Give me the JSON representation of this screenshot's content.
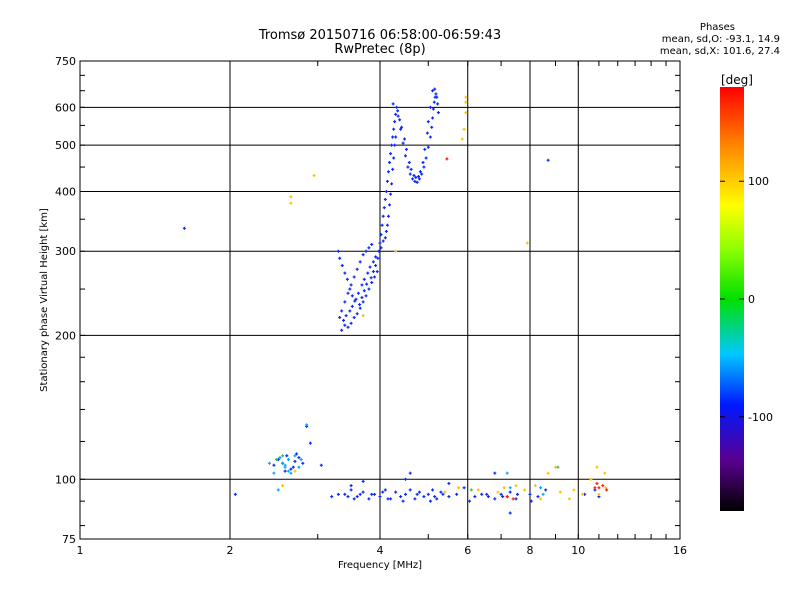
{
  "chart_data": {
    "type": "scatter",
    "title": "Tromsø 20150716 06:58:00-06:59:43",
    "subtitle": "RwPretec (8p)",
    "xlabel": "Frequency [MHz]",
    "ylabel": "Stationary phase Virtual Height [km]",
    "x_scale": "log",
    "y_scale": "log",
    "xlim": [
      1,
      16
    ],
    "ylim": [
      75,
      750
    ],
    "x_ticks": [
      "1",
      "2",
      "4",
      "6",
      "8",
      "10",
      "16"
    ],
    "x_tick_values": [
      1,
      2,
      4,
      6,
      8,
      10,
      16
    ],
    "y_ticks": [
      "75",
      "100",
      "200",
      "300",
      "400",
      "500",
      "600",
      "750"
    ],
    "y_tick_values": [
      75,
      100,
      200,
      300,
      400,
      500,
      600,
      750
    ],
    "grid": true,
    "phase_info": {
      "heading": "Phases",
      "line1": "mean, sd,O: -93.1, 14.9",
      "line2": "mean, sd,X: 101.6, 27.4"
    },
    "colorbar": {
      "label": "[deg]",
      "ticks": [
        "100",
        "0",
        "-100"
      ],
      "tick_values": [
        100,
        0,
        -100
      ],
      "range": [
        -180,
        180
      ]
    },
    "series": [
      {
        "points": [
          [
            3.35,
            205
          ],
          [
            3.4,
            210
          ],
          [
            3.38,
            215
          ],
          [
            3.45,
            208
          ],
          [
            3.5,
            212
          ],
          [
            3.42,
            220
          ],
          [
            3.55,
            218
          ],
          [
            3.48,
            225
          ],
          [
            3.6,
            222
          ],
          [
            3.52,
            230
          ],
          [
            3.65,
            228
          ],
          [
            3.58,
            238
          ],
          [
            3.7,
            235
          ],
          [
            3.62,
            245
          ],
          [
            3.75,
            242
          ],
          [
            3.68,
            255
          ],
          [
            3.8,
            250
          ],
          [
            3.72,
            262
          ],
          [
            3.85,
            258
          ],
          [
            3.78,
            270
          ],
          [
            3.9,
            265
          ],
          [
            3.82,
            278
          ],
          [
            3.95,
            272
          ],
          [
            3.88,
            285
          ],
          [
            3.92,
            292
          ],
          [
            3.75,
            300
          ],
          [
            3.8,
            305
          ],
          [
            3.85,
            310
          ],
          [
            3.7,
            295
          ],
          [
            3.65,
            285
          ],
          [
            3.6,
            275
          ],
          [
            3.55,
            265
          ],
          [
            3.5,
            255
          ],
          [
            3.45,
            245
          ],
          [
            3.4,
            235
          ],
          [
            3.35,
            225
          ],
          [
            3.32,
            218
          ],
          [
            3.3,
            300
          ],
          [
            3.32,
            290
          ],
          [
            3.36,
            280
          ],
          [
            3.4,
            270
          ],
          [
            3.44,
            262
          ],
          [
            3.48,
            250
          ],
          [
            3.52,
            242
          ],
          [
            3.56,
            236
          ],
          [
            3.64,
            232
          ],
          [
            3.68,
            240
          ],
          [
            3.72,
            248
          ],
          [
            3.76,
            256
          ],
          [
            3.84,
            264
          ],
          [
            3.88,
            272
          ],
          [
            3.92,
            280
          ],
          [
            3.96,
            290
          ],
          [
            3.98,
            300
          ],
          [
            4.0,
            312
          ],
          [
            4.02,
            325
          ],
          [
            4.04,
            340
          ],
          [
            4.06,
            355
          ],
          [
            4.08,
            370
          ],
          [
            4.1,
            385
          ],
          [
            4.12,
            400
          ],
          [
            4.14,
            420
          ],
          [
            4.16,
            440
          ],
          [
            4.18,
            460
          ],
          [
            4.2,
            480
          ],
          [
            4.22,
            500
          ],
          [
            4.24,
            520
          ],
          [
            4.26,
            540
          ],
          [
            4.28,
            560
          ],
          [
            4.3,
            580
          ],
          [
            4.32,
            600
          ],
          [
            4.25,
            610
          ],
          [
            4.35,
            575
          ],
          [
            4.4,
            540
          ],
          [
            4.45,
            505
          ],
          [
            4.5,
            475
          ],
          [
            4.55,
            450
          ],
          [
            4.6,
            435
          ],
          [
            4.65,
            425
          ],
          [
            4.7,
            420
          ],
          [
            4.75,
            418
          ],
          [
            4.8,
            425
          ],
          [
            4.85,
            435
          ],
          [
            4.9,
            450
          ],
          [
            4.95,
            470
          ],
          [
            5.0,
            495
          ],
          [
            5.05,
            520
          ],
          [
            5.08,
            545
          ],
          [
            5.1,
            570
          ],
          [
            5.12,
            595
          ],
          [
            5.14,
            615
          ],
          [
            5.16,
            630
          ],
          [
            5.18,
            640
          ],
          [
            5.2,
            630
          ],
          [
            5.22,
            610
          ],
          [
            5.24,
            585
          ],
          [
            5.1,
            650
          ],
          [
            5.15,
            655
          ],
          [
            5.05,
            600
          ],
          [
            5.0,
            560
          ],
          [
            4.98,
            530
          ],
          [
            4.92,
            490
          ],
          [
            4.88,
            460
          ],
          [
            4.82,
            440
          ],
          [
            4.78,
            430
          ],
          [
            4.72,
            428
          ],
          [
            4.68,
            432
          ],
          [
            4.62,
            445
          ],
          [
            4.58,
            460
          ],
          [
            4.52,
            490
          ],
          [
            4.48,
            515
          ],
          [
            4.42,
            545
          ],
          [
            4.38,
            565
          ],
          [
            4.34,
            590
          ],
          [
            4.3,
            520
          ],
          [
            4.28,
            500
          ],
          [
            4.26,
            470
          ],
          [
            4.24,
            445
          ],
          [
            4.22,
            415
          ],
          [
            4.2,
            395
          ],
          [
            4.18,
            375
          ],
          [
            4.16,
            355
          ],
          [
            4.14,
            340
          ],
          [
            4.12,
            330
          ],
          [
            4.1,
            320
          ],
          [
            4.06,
            315
          ],
          [
            4.02,
            305
          ],
          [
            1.62,
            335
          ],
          [
            8.7,
            465
          ],
          [
            2.45,
            107
          ],
          [
            2.5,
            110
          ],
          [
            2.55,
            108
          ],
          [
            2.6,
            112
          ],
          [
            2.65,
            105
          ],
          [
            2.7,
            109
          ],
          [
            2.75,
            111
          ],
          [
            2.58,
            104
          ],
          [
            2.68,
            106
          ],
          [
            2.8,
            108
          ],
          [
            2.72,
            113
          ],
          [
            2.9,
            119
          ],
          [
            2.85,
            129
          ],
          [
            3.05,
            107
          ],
          [
            2.05,
            93
          ],
          [
            3.2,
            92
          ],
          [
            3.4,
            93
          ],
          [
            3.5,
            95
          ],
          [
            3.6,
            92
          ],
          [
            3.7,
            94
          ],
          [
            3.8,
            91
          ],
          [
            3.9,
            93
          ],
          [
            4.0,
            92
          ],
          [
            4.1,
            95
          ],
          [
            4.2,
            91
          ],
          [
            4.3,
            94
          ],
          [
            4.4,
            92
          ],
          [
            4.5,
            93
          ],
          [
            4.6,
            95
          ],
          [
            4.7,
            91
          ],
          [
            4.8,
            94
          ],
          [
            4.9,
            92
          ],
          [
            5.0,
            93
          ],
          [
            5.1,
            95
          ],
          [
            5.2,
            91
          ],
          [
            5.3,
            94
          ],
          [
            5.5,
            92
          ],
          [
            5.7,
            93
          ],
          [
            5.9,
            96
          ],
          [
            6.2,
            92
          ],
          [
            6.4,
            93
          ],
          [
            6.6,
            92
          ],
          [
            6.8,
            91
          ],
          [
            7.0,
            93
          ],
          [
            7.2,
            92
          ],
          [
            7.3,
            94
          ],
          [
            7.5,
            91
          ],
          [
            8.0,
            93
          ],
          [
            8.3,
            92
          ],
          [
            8.6,
            95
          ],
          [
            10.3,
            93
          ],
          [
            10.8,
            95
          ],
          [
            11.0,
            92
          ],
          [
            3.5,
            97
          ],
          [
            3.7,
            99
          ],
          [
            4.5,
            100
          ],
          [
            4.6,
            103
          ],
          [
            5.5,
            98
          ],
          [
            6.8,
            103
          ],
          [
            7.3,
            85
          ],
          [
            3.3,
            93
          ],
          [
            3.55,
            91
          ],
          [
            3.85,
            93
          ],
          [
            4.15,
            91
          ],
          [
            4.45,
            90
          ],
          [
            4.75,
            93
          ],
          [
            5.05,
            90
          ],
          [
            5.35,
            93
          ],
          [
            6.05,
            90
          ],
          [
            6.55,
            93
          ],
          [
            7.05,
            92
          ],
          [
            7.55,
            93
          ],
          [
            8.05,
            90
          ],
          [
            3.45,
            92
          ],
          [
            3.65,
            93
          ],
          [
            4.05,
            94
          ],
          [
            5.15,
            92
          ]
        ],
        "color": "#0a28ff"
      },
      {
        "points": [
          [
            2.65,
            378
          ],
          [
            2.65,
            390
          ],
          [
            2.95,
            432
          ],
          [
            5.45,
            468
          ],
          [
            5.85,
            515
          ],
          [
            5.9,
            540
          ],
          [
            5.95,
            585
          ],
          [
            5.95,
            615
          ],
          [
            5.95,
            630
          ],
          [
            5.95,
            615
          ],
          [
            7.9,
            312
          ],
          [
            3.7,
            220
          ],
          [
            4.3,
            300
          ],
          [
            2.55,
            97
          ],
          [
            2.7,
            104
          ],
          [
            5.75,
            96
          ],
          [
            6.3,
            95
          ],
          [
            7.1,
            96
          ],
          [
            7.5,
            97
          ],
          [
            8.2,
            97
          ],
          [
            8.7,
            103
          ],
          [
            9.0,
            106
          ],
          [
            9.2,
            94
          ],
          [
            9.6,
            91
          ],
          [
            10.6,
            100
          ],
          [
            10.9,
            106
          ],
          [
            11.0,
            93
          ],
          [
            11.3,
            103
          ],
          [
            11.35,
            96
          ],
          [
            9.8,
            95
          ],
          [
            10.2,
            93
          ],
          [
            8.4,
            91
          ],
          [
            7.8,
            95
          ],
          [
            6.9,
            94
          ],
          [
            5.4,
            94
          ]
        ],
        "color": "#ffbf00"
      },
      {
        "points": [
          [
            7.2,
            92
          ],
          [
            7.4,
            91
          ],
          [
            10.9,
            98
          ],
          [
            11.0,
            96
          ],
          [
            11.4,
            95
          ],
          [
            10.8,
            96
          ],
          [
            11.2,
            97
          ],
          [
            5.45,
            468
          ]
        ],
        "color": "#ff2000"
      },
      {
        "points": [
          [
            2.85,
            130
          ],
          [
            2.58,
            107
          ],
          [
            2.62,
            110
          ],
          [
            2.7,
            112
          ],
          [
            2.55,
            108
          ],
          [
            2.65,
            103
          ],
          [
            2.4,
            108
          ],
          [
            2.75,
            106
          ],
          [
            7.2,
            103
          ],
          [
            8.5,
            93
          ],
          [
            2.5,
            95
          ],
          [
            2.45,
            103
          ],
          [
            2.62,
            104
          ],
          [
            2.52,
            111
          ],
          [
            2.78,
            110
          ],
          [
            2.58,
            106
          ],
          [
            7.3,
            96
          ],
          [
            8.4,
            96
          ]
        ],
        "color": "#00a8ff"
      },
      {
        "points": [
          [
            9.1,
            106
          ],
          [
            2.55,
            112
          ],
          [
            2.48,
            110
          ],
          [
            6.1,
            95
          ]
        ],
        "color": "#40c040"
      }
    ]
  }
}
